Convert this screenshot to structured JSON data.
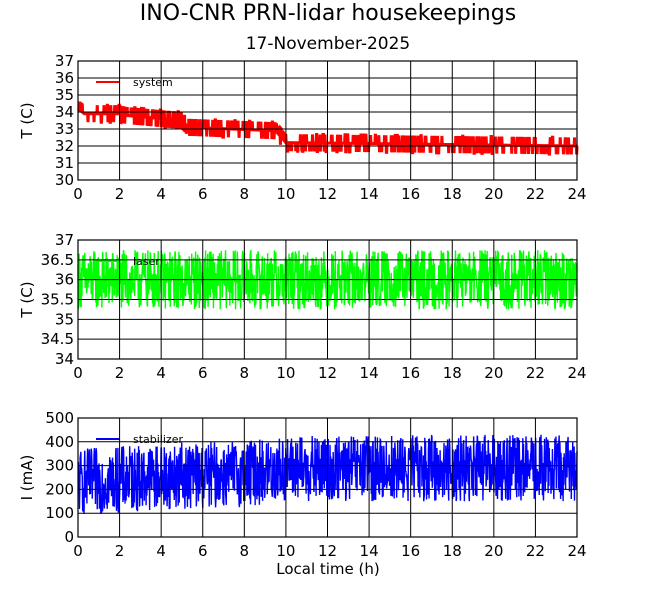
{
  "title": "INO-CNR PRN-lidar housekeepings",
  "subtitle": "17-November-2025",
  "xlabel": "Local time (h)",
  "chart_data": [
    {
      "type": "line",
      "series": [
        {
          "name": "system",
          "color": "#ff0000",
          "profile_x": [
            0,
            0.3,
            2,
            2.3,
            5,
            5.3,
            9.5,
            10,
            24
          ],
          "profile_y": [
            34.2,
            33.9,
            33.9,
            33.8,
            33.5,
            33.1,
            32.9,
            32.2,
            32.0
          ],
          "spread": 0.35
        }
      ],
      "ylabel": "T (C)",
      "xlim": [
        0,
        24
      ],
      "ylim": [
        30,
        37
      ],
      "xticks": [
        "0",
        "2",
        "4",
        "6",
        "8",
        "10",
        "12",
        "14",
        "16",
        "18",
        "20",
        "22",
        "24"
      ],
      "yticks": [
        "30",
        "31",
        "32",
        "33",
        "34",
        "35",
        "36",
        "37"
      ],
      "legend": "top-left"
    },
    {
      "type": "line",
      "series": [
        {
          "name": "laser",
          "color": "#00ff00",
          "profile_x": [
            0,
            24
          ],
          "profile_y": [
            36.0,
            36.0
          ],
          "spread": 0.75
        }
      ],
      "ylabel": "T (C)",
      "xlim": [
        0,
        24
      ],
      "ylim": [
        34,
        37
      ],
      "xticks": [
        "0",
        "2",
        "4",
        "6",
        "8",
        "10",
        "12",
        "14",
        "16",
        "18",
        "20",
        "22",
        "24"
      ],
      "yticks": [
        "34",
        "34.5",
        "35",
        "35.5",
        "36",
        "36.5",
        "37"
      ],
      "legend": "top-left"
    },
    {
      "type": "line",
      "series": [
        {
          "name": "stabilizer",
          "color": "#0000ff",
          "profile_x": [
            0,
            4,
            8,
            10,
            12,
            16,
            20,
            24
          ],
          "profile_y": [
            230,
            255,
            265,
            285,
            285,
            290,
            290,
            290
          ],
          "spread": 140
        }
      ],
      "ylabel": "I (mA)",
      "xlim": [
        0,
        24
      ],
      "ylim": [
        0,
        500
      ],
      "xticks": [
        "0",
        "2",
        "4",
        "6",
        "8",
        "10",
        "12",
        "14",
        "16",
        "18",
        "20",
        "22",
        "24"
      ],
      "yticks": [
        "0",
        "100",
        "200",
        "300",
        "400",
        "500"
      ],
      "legend": "top-left"
    }
  ]
}
